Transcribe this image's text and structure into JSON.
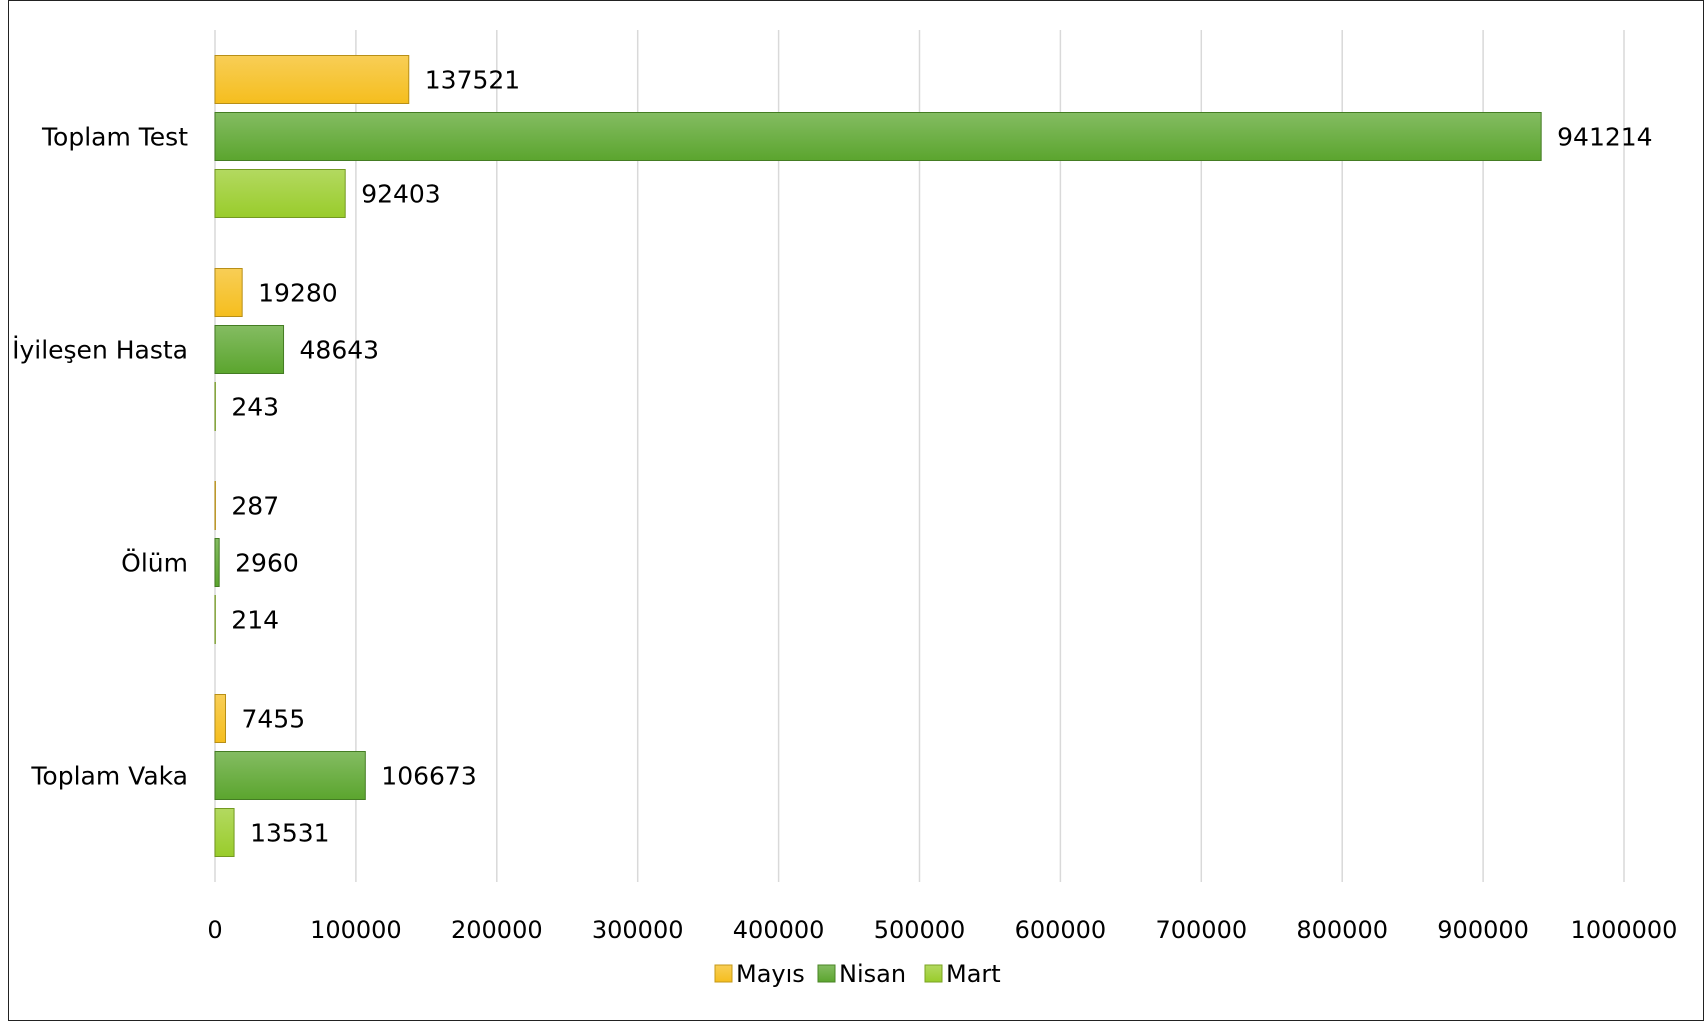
{
  "chart_data": {
    "type": "bar",
    "orientation": "horizontal",
    "categories": [
      "Toplam Test",
      "İyileşen Hasta",
      "Ölüm",
      "Toplam Vaka"
    ],
    "series": [
      {
        "name": "Mayıs",
        "color": "#F5BE1E",
        "values": [
          137521,
          19280,
          287,
          7455
        ],
        "labels": [
          "137521",
          "19280",
          "287",
          "7455"
        ]
      },
      {
        "name": "Nisan",
        "color": "#5BA52E",
        "values": [
          941214,
          48643,
          2960,
          106673
        ],
        "labels": [
          "941214",
          "48643",
          "2960",
          "106673"
        ]
      },
      {
        "name": "Mart",
        "color": "#99CC2B",
        "values": [
          92403,
          243,
          214,
          13531
        ],
        "labels": [
          "92403",
          "243",
          "214",
          "13531"
        ]
      }
    ],
    "xlim": [
      0,
      1000000
    ],
    "xticks": [
      0,
      100000,
      200000,
      300000,
      400000,
      500000,
      600000,
      700000,
      800000,
      900000,
      1000000
    ],
    "xtick_labels": [
      "0",
      "100000",
      "200000",
      "300000",
      "400000",
      "500000",
      "600000",
      "700000",
      "800000",
      "900000",
      "1000000"
    ],
    "grid": true,
    "legend_position": "bottom"
  }
}
